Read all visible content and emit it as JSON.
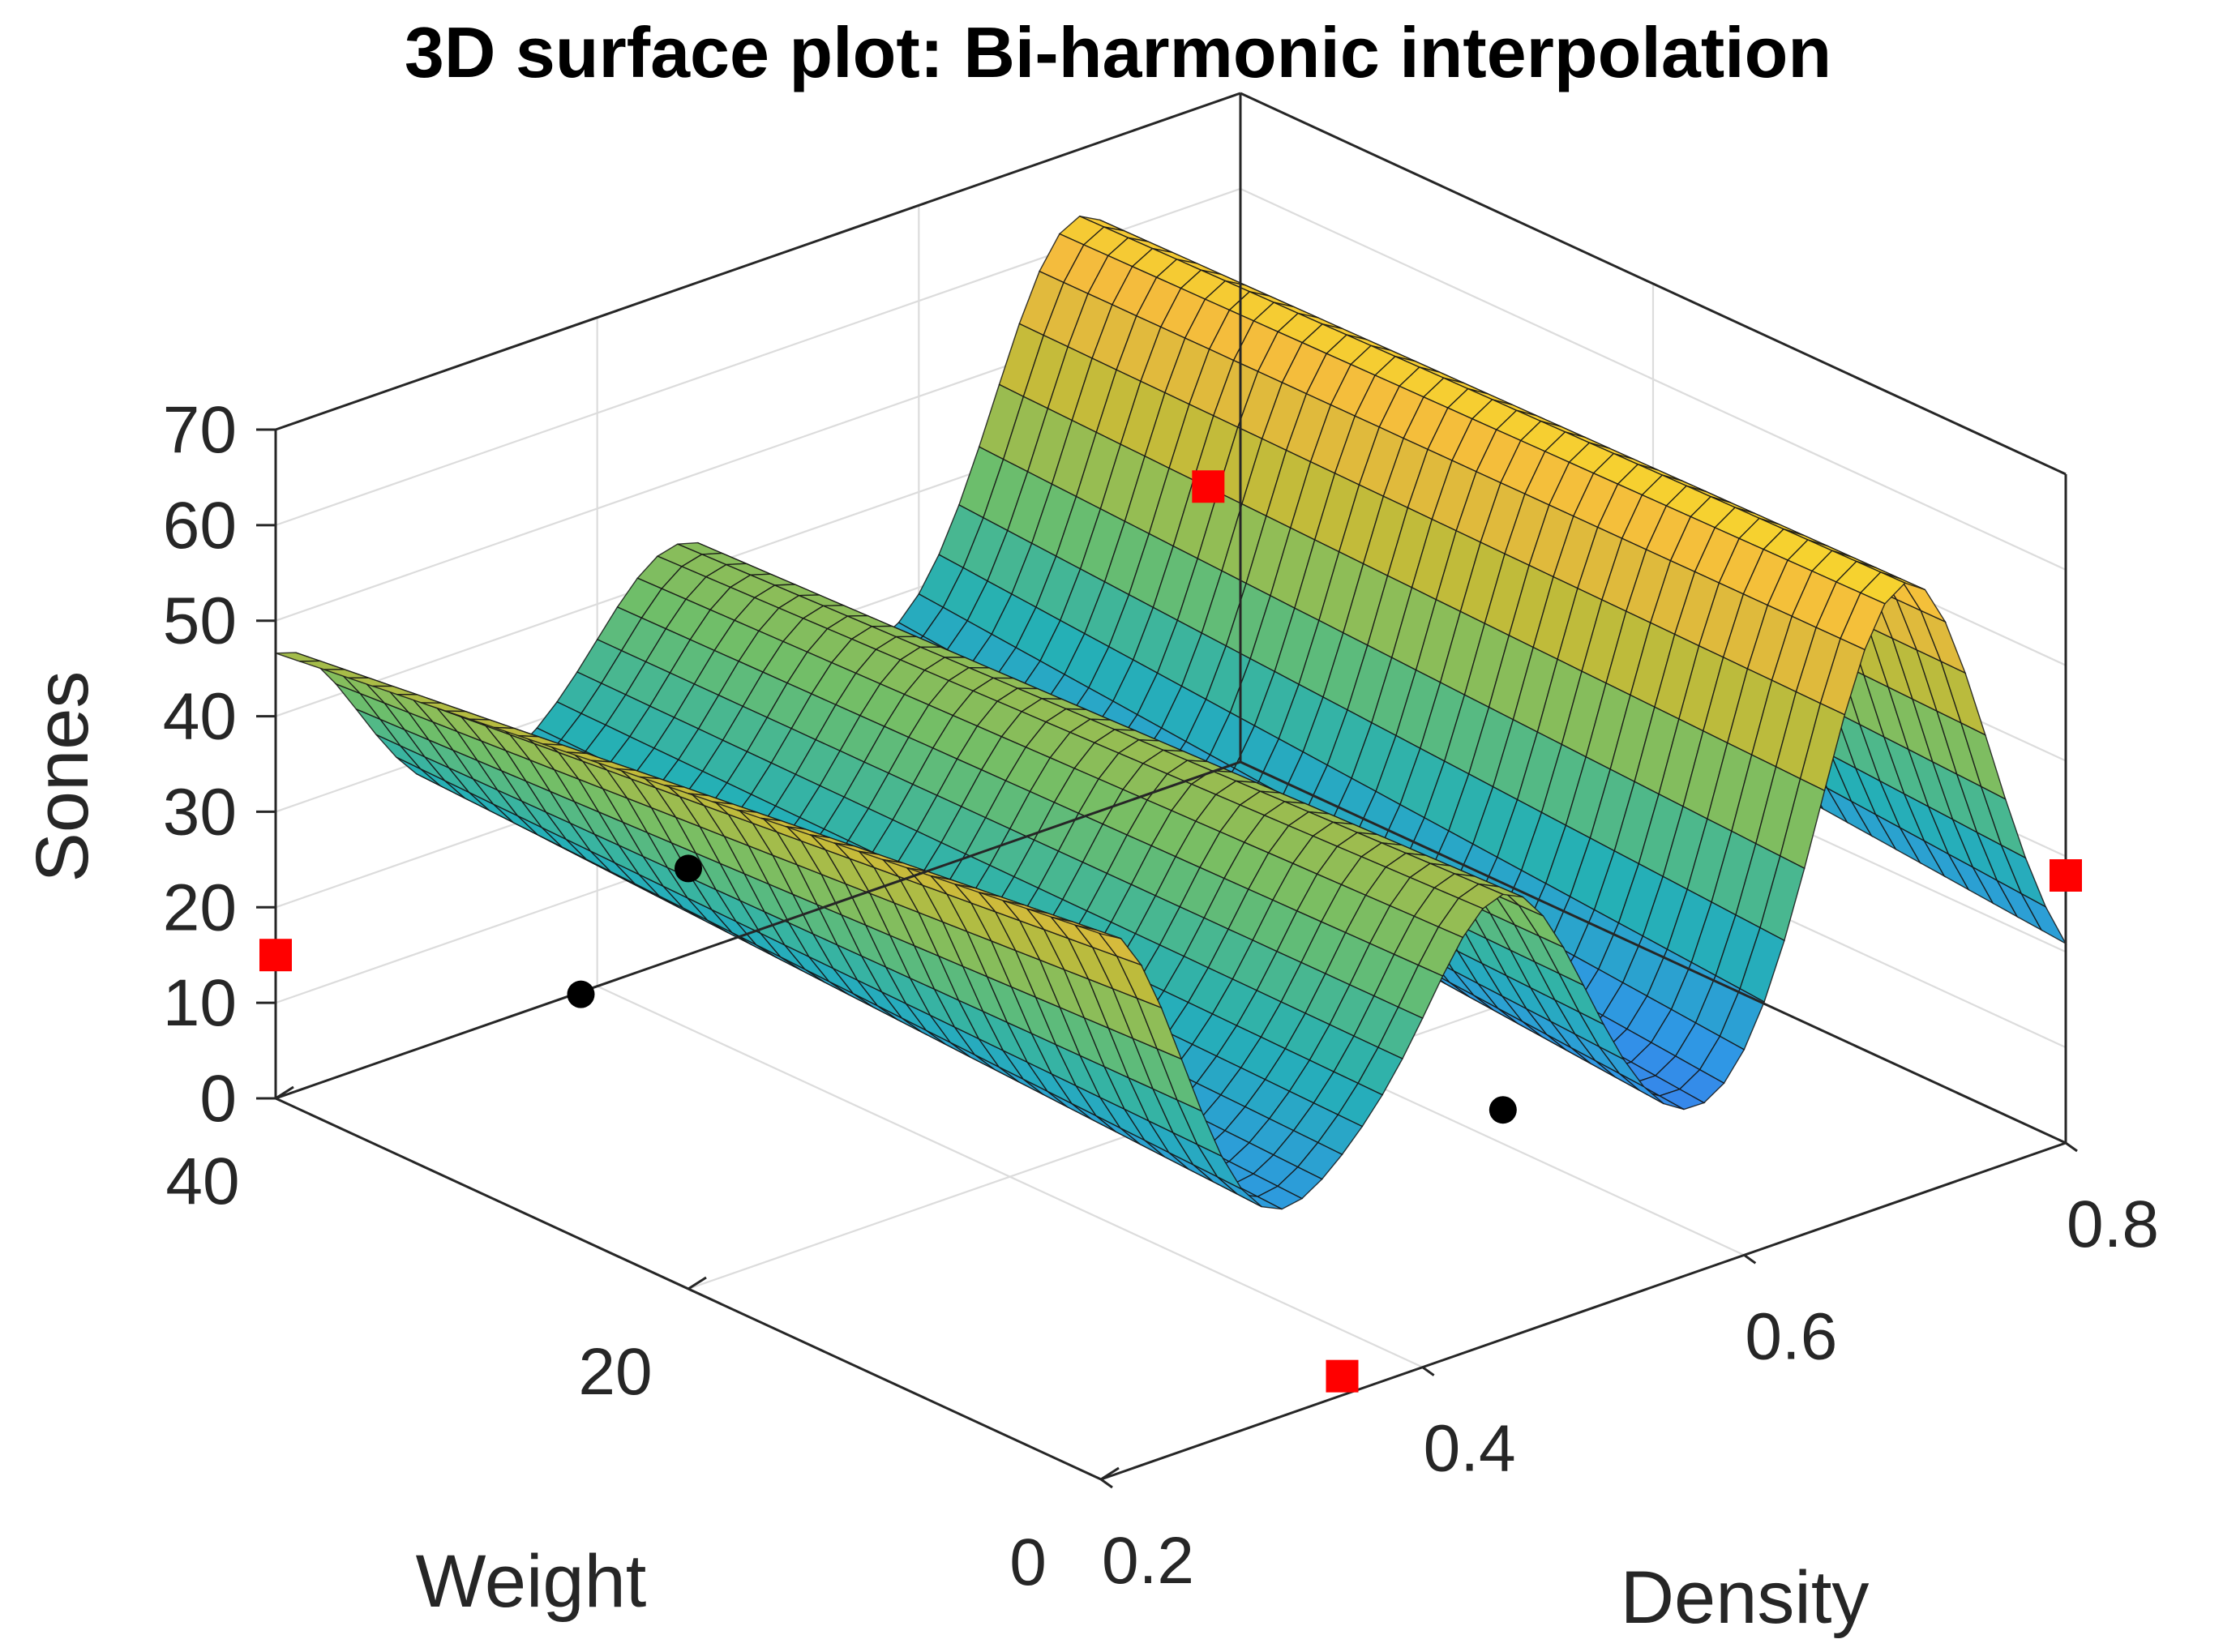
{
  "chart_data": {
    "type": "surface",
    "title": "3D surface plot: Bi-harmonic interpolation",
    "xlabel": "Density",
    "ylabel": "Weight",
    "zlabel": "Sones",
    "xlim": [
      0.2,
      0.8
    ],
    "ylim": [
      0,
      40
    ],
    "zlim": [
      0,
      70
    ],
    "xticks": [
      "0.2",
      "0.4",
      "0.6",
      "0.8"
    ],
    "yticks": [
      "0",
      "20",
      "40"
    ],
    "zticks": [
      "0",
      "10",
      "20",
      "30",
      "40",
      "50",
      "60",
      "70"
    ],
    "grid": true,
    "colormap": [
      "#3e26a8",
      "#4a5df5",
      "#2f96e6",
      "#25b0b5",
      "#6ebe6a",
      "#c0bb3a",
      "#f4ba3e",
      "#f9fb15"
    ],
    "ridges_along_density": [
      {
        "density": 0.2,
        "at_weight_0": 55,
        "at_weight_40": 30
      },
      {
        "density": 0.45,
        "at_weight_0": 42,
        "at_weight_40": 26
      },
      {
        "density": 0.7,
        "at_weight_0": 64,
        "at_weight_40": 50
      }
    ],
    "valleys": [
      {
        "density": 0.35,
        "at_weight_0": 8,
        "at_weight_40": 2
      }
    ],
    "series": [
      {
        "name": "",
        "marker": "square",
        "color": "#ff0000",
        "points": [
          {
            "x": 0.2,
            "y": 40,
            "z": 15
          },
          {
            "x": 0.35,
            "y": 0,
            "z": 2
          },
          {
            "x": 0.78,
            "y": 40,
            "z": 30
          },
          {
            "x": 0.8,
            "y": 0,
            "z": 28
          }
        ]
      },
      {
        "name": "",
        "marker": "circle",
        "color": "#000000",
        "points": [
          {
            "x": 0.2,
            "y": 20,
            "z": 44
          },
          {
            "x": 0.3,
            "y": 33,
            "z": 12
          },
          {
            "x": 0.45,
            "y": 0,
            "z": 24
          }
        ]
      }
    ]
  }
}
